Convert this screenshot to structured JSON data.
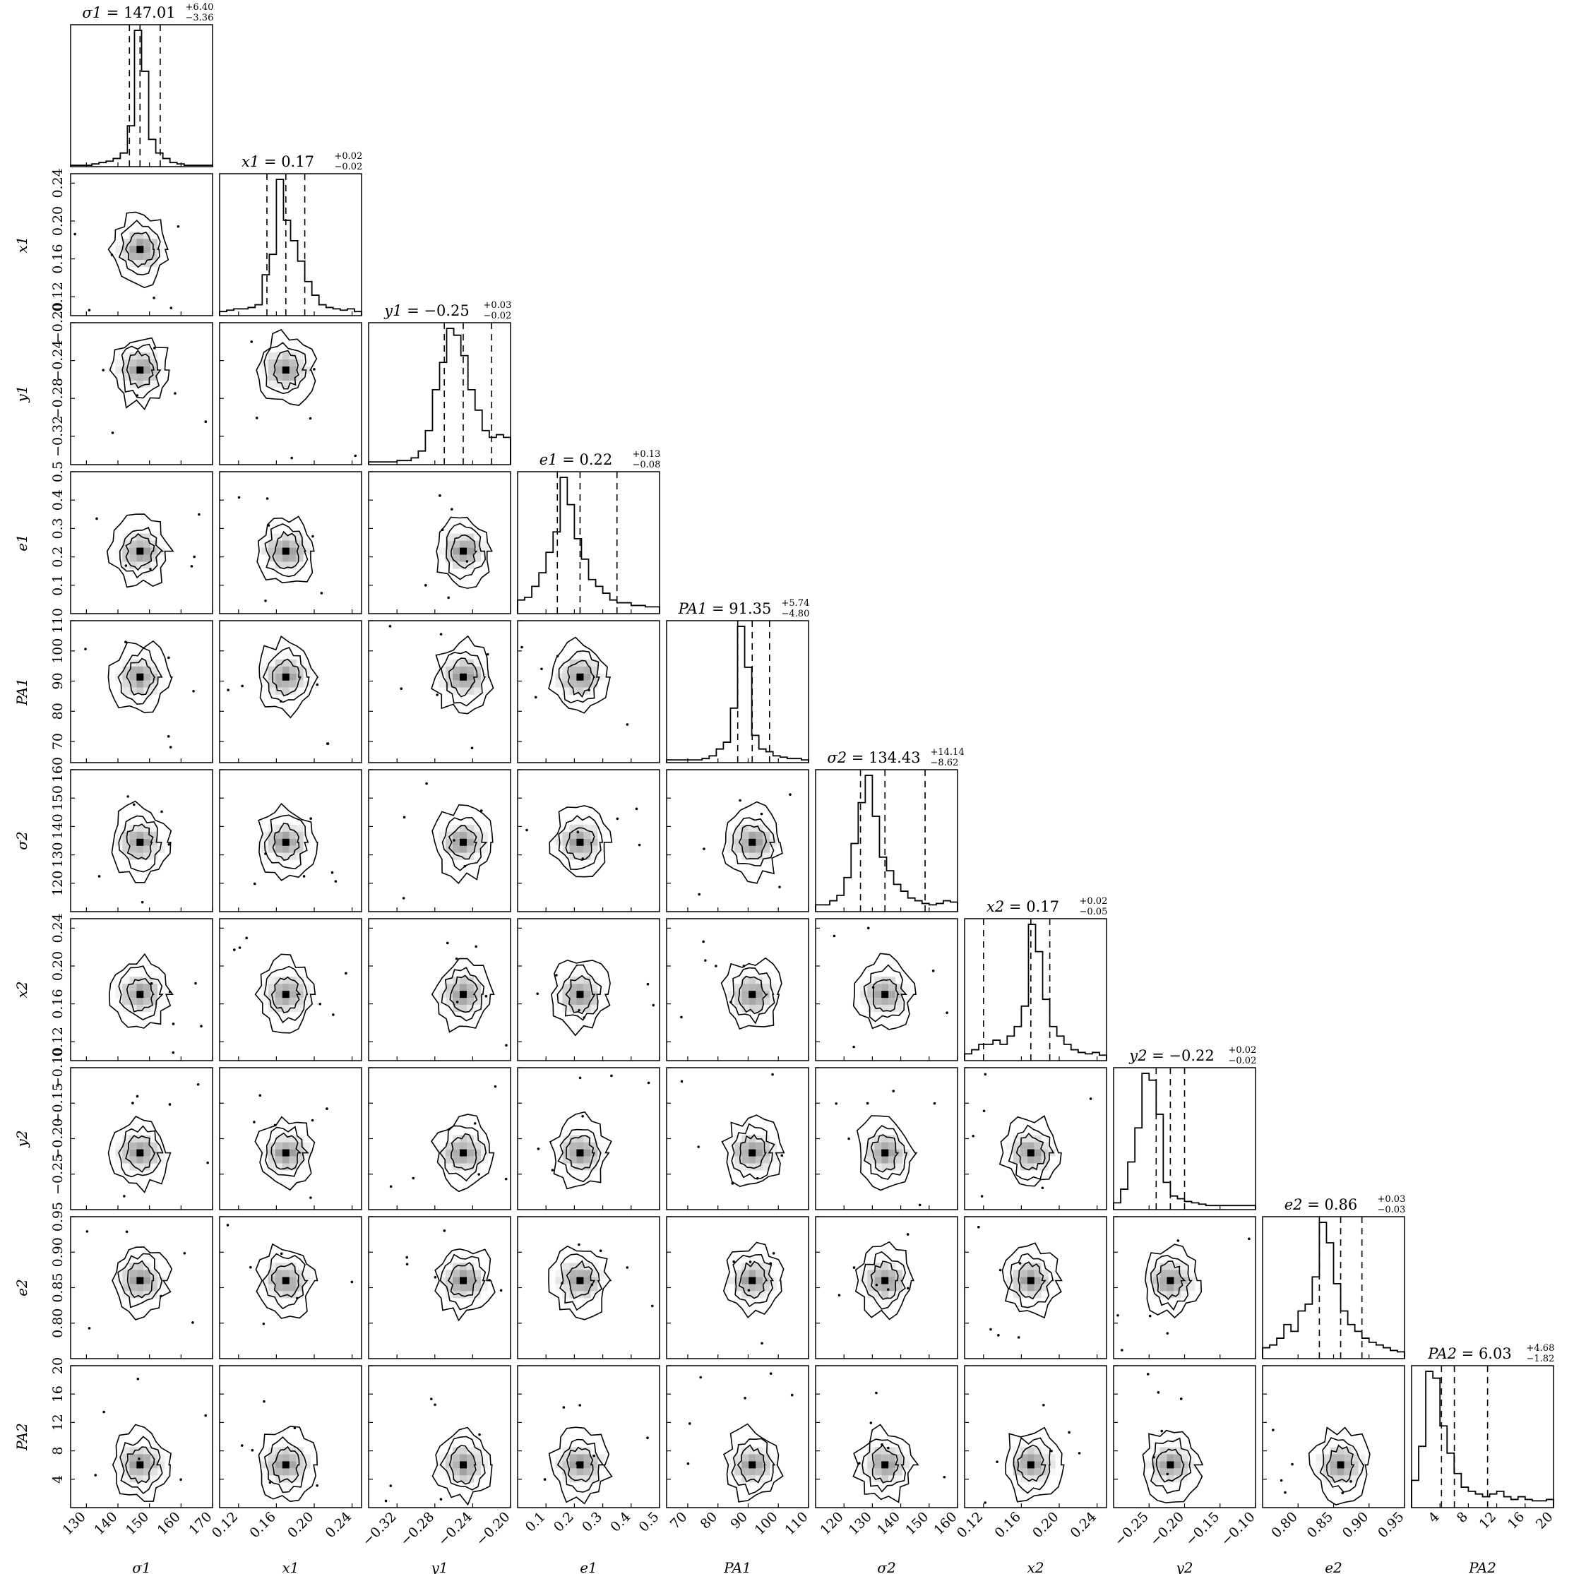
{
  "chart_data": {
    "type": "corner",
    "parameters": [
      {
        "label": "σ1",
        "median": "147.01",
        "plus": "+6.40",
        "minus": "−3.36",
        "range": [
          125,
          170
        ],
        "ticks": [
          130,
          140,
          150,
          160,
          170
        ],
        "tick_labels": [
          "130",
          "140",
          "150",
          "160",
          "170"
        ]
      },
      {
        "label": "x1",
        "median": "0.17",
        "plus": "+0.02",
        "minus": "−0.02",
        "range": [
          0.1,
          0.25
        ],
        "ticks": [
          0.12,
          0.16,
          0.2,
          0.24
        ],
        "tick_labels": [
          "0.12",
          "0.16",
          "0.20",
          "0.24"
        ]
      },
      {
        "label": "y1",
        "median": "−0.25",
        "plus": "+0.03",
        "minus": "−0.02",
        "range": [
          -0.35,
          -0.2
        ],
        "ticks": [
          -0.32,
          -0.28,
          -0.24,
          -0.2
        ],
        "tick_labels": [
          "−0.32",
          "−0.28",
          "−0.24",
          "−0.20"
        ]
      },
      {
        "label": "e1",
        "median": "0.22",
        "plus": "+0.13",
        "minus": "−0.08",
        "range": [
          0.0,
          0.5
        ],
        "ticks": [
          0.1,
          0.2,
          0.3,
          0.4,
          0.5
        ],
        "tick_labels": [
          "0.1",
          "0.2",
          "0.3",
          "0.4",
          "0.5"
        ]
      },
      {
        "label": "PA1",
        "median": "91.35",
        "plus": "+5.74",
        "minus": "−4.80",
        "range": [
          63,
          110
        ],
        "ticks": [
          70,
          80,
          90,
          100,
          110
        ],
        "tick_labels": [
          "70",
          "80",
          "90",
          "100",
          "110"
        ]
      },
      {
        "label": "σ2",
        "median": "134.43",
        "plus": "+14.14",
        "minus": "−8.62",
        "range": [
          110,
          160
        ],
        "ticks": [
          120,
          130,
          140,
          150,
          160
        ],
        "tick_labels": [
          "120",
          "130",
          "140",
          "150",
          "160"
        ]
      },
      {
        "label": "x2",
        "median": "0.17",
        "plus": "+0.02",
        "minus": "−0.05",
        "range": [
          0.1,
          0.25
        ],
        "ticks": [
          0.12,
          0.16,
          0.2,
          0.24
        ],
        "tick_labels": [
          "0.12",
          "0.16",
          "0.20",
          "0.24"
        ]
      },
      {
        "label": "y2",
        "median": "−0.22",
        "plus": "+0.02",
        "minus": "−0.02",
        "range": [
          -0.3,
          -0.1
        ],
        "ticks": [
          -0.25,
          -0.2,
          -0.15,
          -0.1
        ],
        "tick_labels": [
          "−0.25",
          "−0.20",
          "−0.15",
          "−0.10"
        ]
      },
      {
        "label": "e2",
        "median": "0.86",
        "plus": "+0.03",
        "minus": "−0.03",
        "range": [
          0.75,
          0.95
        ],
        "ticks": [
          0.8,
          0.85,
          0.9,
          0.95
        ],
        "tick_labels": [
          "0.80",
          "0.85",
          "0.90",
          "0.95"
        ]
      },
      {
        "label": "PA2",
        "median": "6.03",
        "plus": "+4.68",
        "minus": "−1.82",
        "range": [
          0,
          20
        ],
        "ticks": [
          4,
          8,
          12,
          16,
          20
        ],
        "tick_labels": [
          "4",
          "8",
          "12",
          "16",
          "20"
        ]
      }
    ],
    "histograms": [
      {
        "medianValue": 147.01,
        "q_lo": 143.65,
        "q_hi": 153.41,
        "counts": [
          1,
          1,
          1,
          2,
          3,
          4,
          6,
          10,
          30,
          100,
          70,
          20,
          10,
          6,
          3,
          2,
          1,
          1,
          1,
          1
        ]
      },
      {
        "medianValue": 0.17,
        "q_lo": 0.15,
        "q_hi": 0.19,
        "counts": [
          3,
          4,
          5,
          5,
          6,
          8,
          30,
          45,
          100,
          70,
          55,
          40,
          25,
          15,
          8,
          6,
          5,
          4,
          5,
          3
        ]
      },
      {
        "medianValue": -0.25,
        "q_lo": -0.27,
        "q_hi": -0.22,
        "counts": [
          2,
          2,
          2,
          2,
          3,
          3,
          5,
          10,
          25,
          55,
          75,
          100,
          95,
          80,
          55,
          40,
          25,
          20,
          22,
          20
        ]
      },
      {
        "medianValue": 0.22,
        "q_lo": 0.14,
        "q_hi": 0.35,
        "counts": [
          10,
          12,
          20,
          30,
          45,
          60,
          100,
          80,
          55,
          40,
          25,
          20,
          15,
          10,
          8,
          8,
          6,
          6,
          5,
          5
        ]
      },
      {
        "medianValue": 91.35,
        "q_lo": 86.55,
        "q_hi": 97.09,
        "counts": [
          2,
          2,
          2,
          2,
          2,
          3,
          5,
          10,
          15,
          40,
          100,
          70,
          20,
          10,
          8,
          5,
          4,
          3,
          3,
          2
        ]
      },
      {
        "medianValue": 134.43,
        "q_lo": 125.81,
        "q_hi": 148.57,
        "counts": [
          5,
          5,
          8,
          12,
          25,
          50,
          80,
          100,
          70,
          40,
          30,
          20,
          15,
          10,
          8,
          6,
          5,
          6,
          8,
          7
        ]
      },
      {
        "medianValue": 0.17,
        "q_lo": 0.12,
        "q_hi": 0.19,
        "counts": [
          5,
          8,
          12,
          12,
          15,
          12,
          18,
          25,
          40,
          100,
          80,
          45,
          25,
          18,
          12,
          8,
          6,
          5,
          6,
          4
        ]
      },
      {
        "medianValue": -0.22,
        "q_lo": -0.24,
        "q_hi": -0.2,
        "counts": [
          5,
          15,
          35,
          60,
          100,
          95,
          70,
          20,
          10,
          8,
          6,
          5,
          4,
          3,
          3,
          3,
          3,
          3,
          3,
          3
        ]
      },
      {
        "medianValue": 0.86,
        "q_lo": 0.83,
        "q_hi": 0.89,
        "counts": [
          8,
          10,
          15,
          25,
          20,
          35,
          40,
          60,
          100,
          85,
          55,
          35,
          25,
          20,
          15,
          12,
          10,
          8,
          6,
          5
        ]
      },
      {
        "medianValue": 6.03,
        "q_lo": 4.21,
        "q_hi": 10.71,
        "counts": [
          20,
          45,
          100,
          95,
          60,
          40,
          25,
          15,
          12,
          10,
          8,
          10,
          12,
          8,
          6,
          8,
          6,
          5,
          5,
          6
        ]
      }
    ],
    "grid": false,
    "plot_style": "corner plot: 1D marginal histograms with dashed 16/50/84% quantile lines on diagonal, 2D density histograms with contours below diagonal"
  }
}
